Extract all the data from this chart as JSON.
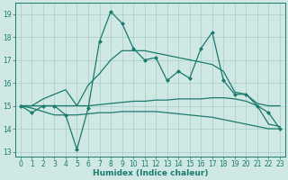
{
  "xlabel": "Humidex (Indice chaleur)",
  "xlim": [
    -0.5,
    23.5
  ],
  "ylim": [
    12.8,
    19.5
  ],
  "yticks": [
    13,
    14,
    15,
    16,
    17,
    18,
    19
  ],
  "xticks": [
    0,
    1,
    2,
    3,
    4,
    5,
    6,
    7,
    8,
    9,
    10,
    11,
    12,
    13,
    14,
    15,
    16,
    17,
    18,
    19,
    20,
    21,
    22,
    23
  ],
  "background_color": "#cfe8e4",
  "grid_color": "#a8ccc8",
  "line_color": "#1a7a6e",
  "line1": {
    "x": [
      0,
      1,
      2,
      3,
      4,
      5,
      6,
      7,
      8,
      9,
      10,
      11,
      12,
      13,
      14,
      15,
      16,
      17,
      18,
      19,
      20,
      21,
      22,
      23
    ],
    "y": [
      15.0,
      14.7,
      15.0,
      15.0,
      14.6,
      13.1,
      14.9,
      17.8,
      19.1,
      18.6,
      17.5,
      17.0,
      17.1,
      16.1,
      16.5,
      16.2,
      17.5,
      18.2,
      16.1,
      15.5,
      15.5,
      15.0,
      14.7,
      14.0
    ],
    "marker": "D",
    "markersize": 2.0,
    "linewidth": 0.9
  },
  "line2": {
    "x": [
      0,
      1,
      2,
      3,
      4,
      5,
      6,
      7,
      8,
      9,
      10,
      11,
      12,
      13,
      14,
      15,
      16,
      17,
      18,
      19,
      20,
      21,
      22,
      23
    ],
    "y": [
      15.0,
      15.0,
      15.3,
      15.5,
      15.7,
      15.0,
      15.9,
      16.4,
      17.0,
      17.4,
      17.4,
      17.4,
      17.3,
      17.2,
      17.1,
      17.0,
      16.9,
      16.8,
      16.5,
      15.6,
      15.5,
      15.1,
      15.0,
      15.0
    ],
    "marker": null,
    "linewidth": 0.9
  },
  "line3": {
    "x": [
      0,
      1,
      2,
      3,
      4,
      5,
      6,
      7,
      8,
      9,
      10,
      11,
      12,
      13,
      14,
      15,
      16,
      17,
      18,
      19,
      20,
      21,
      22,
      23
    ],
    "y": [
      15.0,
      14.9,
      14.75,
      14.6,
      14.6,
      14.6,
      14.65,
      14.7,
      14.7,
      14.75,
      14.75,
      14.75,
      14.75,
      14.7,
      14.65,
      14.6,
      14.55,
      14.5,
      14.4,
      14.3,
      14.2,
      14.1,
      14.0,
      14.0
    ],
    "marker": null,
    "linewidth": 0.9
  },
  "line4": {
    "x": [
      0,
      1,
      2,
      3,
      4,
      5,
      6,
      7,
      8,
      9,
      10,
      11,
      12,
      13,
      14,
      15,
      16,
      17,
      18,
      19,
      20,
      21,
      22,
      23
    ],
    "y": [
      15.0,
      15.0,
      15.0,
      15.0,
      15.0,
      15.0,
      15.0,
      15.05,
      15.1,
      15.15,
      15.2,
      15.2,
      15.25,
      15.25,
      15.3,
      15.3,
      15.3,
      15.35,
      15.35,
      15.3,
      15.2,
      15.0,
      14.2,
      14.1
    ],
    "marker": null,
    "linewidth": 0.9
  }
}
